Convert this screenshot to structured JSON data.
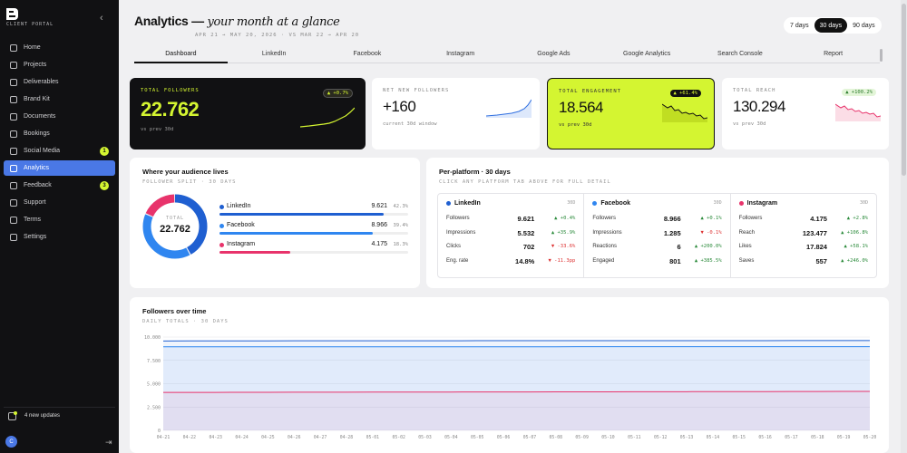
{
  "sidebar": {
    "brand": "CLIENT PORTAL",
    "items": [
      {
        "label": "Home",
        "icon": "home-icon",
        "badge": ""
      },
      {
        "label": "Projects",
        "icon": "folder-icon",
        "badge": ""
      },
      {
        "label": "Deliverables",
        "icon": "package-icon",
        "badge": ""
      },
      {
        "label": "Brand Kit",
        "icon": "palette-icon",
        "badge": ""
      },
      {
        "label": "Documents",
        "icon": "document-icon",
        "badge": ""
      },
      {
        "label": "Bookings",
        "icon": "calendar-icon",
        "badge": ""
      },
      {
        "label": "Social Media",
        "icon": "share-icon",
        "badge": "1"
      },
      {
        "label": "Analytics",
        "icon": "chart-icon",
        "badge": ""
      },
      {
        "label": "Feedback",
        "icon": "message-icon",
        "badge": "3"
      },
      {
        "label": "Support",
        "icon": "help-icon",
        "badge": ""
      },
      {
        "label": "Terms",
        "icon": "terms-icon",
        "badge": ""
      },
      {
        "label": "Settings",
        "icon": "gear-icon",
        "badge": ""
      }
    ],
    "active_index": 7,
    "updates_label": "4 new updates",
    "avatar_initial": "C"
  },
  "header": {
    "title": "Analytics —",
    "title_italic": "your month at a glance",
    "date_range": "APR 21 → MAY 20, 2026 · VS MAR 22 → APR 20"
  },
  "range_buttons": [
    "7 days",
    "30 days",
    "90 days"
  ],
  "range_active": 1,
  "tabs": [
    "Dashboard",
    "LinkedIn",
    "Facebook",
    "Instagram",
    "Google Ads",
    "Google Analytics",
    "Search Console",
    "Report"
  ],
  "tab_active": 0,
  "kpis": {
    "total_followers": {
      "label": "TOTAL FOLLOWERS",
      "value": "22.762",
      "sub": "vs prev 30d",
      "badge": "▲ +0.7%"
    },
    "net_new": {
      "label": "NET NEW FOLLOWERS",
      "value": "+160",
      "sub": "current 30d window"
    },
    "engagement": {
      "label": "TOTAL ENGAGEMENT",
      "value": "18.564",
      "sub": "vs prev 30d",
      "badge": "▲ +61.4%"
    },
    "reach": {
      "label": "TOTAL REACH",
      "value": "130.294",
      "sub": "vs prev 30d",
      "badge": "▲ +100.2%"
    }
  },
  "audience": {
    "title": "Where your audience lives",
    "subtitle": "FOLLOWER SPLIT · 30 DAYS",
    "total_label": "TOTAL",
    "total_value": "22.762",
    "platforms": [
      {
        "name": "LinkedIn",
        "value": "9.621",
        "pct": "42.3%",
        "share": 0.423,
        "color": "#1f5fd1"
      },
      {
        "name": "Facebook",
        "value": "8.966",
        "pct": "39.4%",
        "share": 0.394,
        "color": "#2f86f0"
      },
      {
        "name": "Instagram",
        "value": "4.175",
        "pct": "18.3%",
        "share": 0.183,
        "color": "#e8336b"
      }
    ]
  },
  "per_platform": {
    "title": "Per-platform · 30 days",
    "subtitle": "CLICK ANY PLATFORM TAB ABOVE FOR FULL DETAIL",
    "columns": [
      {
        "name": "LinkedIn",
        "range": "30D",
        "color": "#1f5fd1",
        "rows": [
          {
            "metric": "Followers",
            "value": "9.621",
            "delta": "▲ +0.4%",
            "dir": "up"
          },
          {
            "metric": "Impressions",
            "value": "5.532",
            "delta": "▲ +35.9%",
            "dir": "up"
          },
          {
            "metric": "Clicks",
            "value": "702",
            "delta": "▼ -33.6%",
            "dir": "dn"
          },
          {
            "metric": "Eng. rate",
            "value": "14.8%",
            "delta": "▼ -11.3pp",
            "dir": "dn"
          }
        ]
      },
      {
        "name": "Facebook",
        "range": "30D",
        "color": "#2f86f0",
        "rows": [
          {
            "metric": "Followers",
            "value": "8.966",
            "delta": "▲ +0.1%",
            "dir": "up"
          },
          {
            "metric": "Impressions",
            "value": "1.285",
            "delta": "▼ -0.1%",
            "dir": "dn"
          },
          {
            "metric": "Reactions",
            "value": "6",
            "delta": "▲ +200.0%",
            "dir": "up"
          },
          {
            "metric": "Engaged",
            "value": "801",
            "delta": "▲ +385.5%",
            "dir": "up"
          }
        ]
      },
      {
        "name": "Instagram",
        "range": "30D",
        "color": "#e8336b",
        "rows": [
          {
            "metric": "Followers",
            "value": "4.175",
            "delta": "▲ +2.8%",
            "dir": "up"
          },
          {
            "metric": "Reach",
            "value": "123.477",
            "delta": "▲ +106.8%",
            "dir": "up"
          },
          {
            "metric": "Likes",
            "value": "17.824",
            "delta": "▲ +58.1%",
            "dir": "up"
          },
          {
            "metric": "Saves",
            "value": "557",
            "delta": "▲ +246.0%",
            "dir": "up"
          }
        ]
      }
    ]
  },
  "followers_chart": {
    "title": "Followers over time",
    "subtitle": "DAILY TOTALS · 30 DAYS"
  },
  "chart_data": {
    "type": "area",
    "title": "Followers over time",
    "ylim": [
      0,
      10000
    ],
    "yticks": [
      "10.000",
      "7.500",
      "5.000",
      "2.500",
      "0"
    ],
    "x": [
      "04-21",
      "04-22",
      "04-23",
      "04-24",
      "04-25",
      "04-26",
      "04-27",
      "04-28",
      "05-01",
      "05-02",
      "05-03",
      "05-04",
      "05-05",
      "05-06",
      "05-07",
      "05-08",
      "05-09",
      "05-10",
      "05-11",
      "05-12",
      "05-13",
      "05-14",
      "05-15",
      "05-16",
      "05-17",
      "05-18",
      "05-19",
      "05-20"
    ],
    "series": [
      {
        "name": "LinkedIn",
        "color": "#1f5fd1",
        "values": [
          9580,
          9585,
          9588,
          9590,
          9592,
          9594,
          9596,
          9598,
          9600,
          9602,
          9604,
          9605,
          9606,
          9607,
          9608,
          9609,
          9610,
          9611,
          9612,
          9613,
          9614,
          9615,
          9616,
          9617,
          9618,
          9619,
          9620,
          9621
        ]
      },
      {
        "name": "Facebook",
        "color": "#2f86f0",
        "values": [
          8955,
          8956,
          8956,
          8957,
          8957,
          8958,
          8958,
          8959,
          8959,
          8960,
          8960,
          8961,
          8961,
          8962,
          8962,
          8962,
          8963,
          8963,
          8963,
          8964,
          8964,
          8964,
          8965,
          8965,
          8965,
          8966,
          8966,
          8966
        ]
      },
      {
        "name": "Instagram",
        "color": "#e8336b",
        "values": [
          4060,
          4065,
          4070,
          4075,
          4080,
          4084,
          4088,
          4092,
          4096,
          4100,
          4104,
          4108,
          4112,
          4116,
          4120,
          4124,
          4128,
          4132,
          4136,
          4140,
          4144,
          4148,
          4152,
          4156,
          4160,
          4165,
          4170,
          4175
        ]
      }
    ]
  }
}
